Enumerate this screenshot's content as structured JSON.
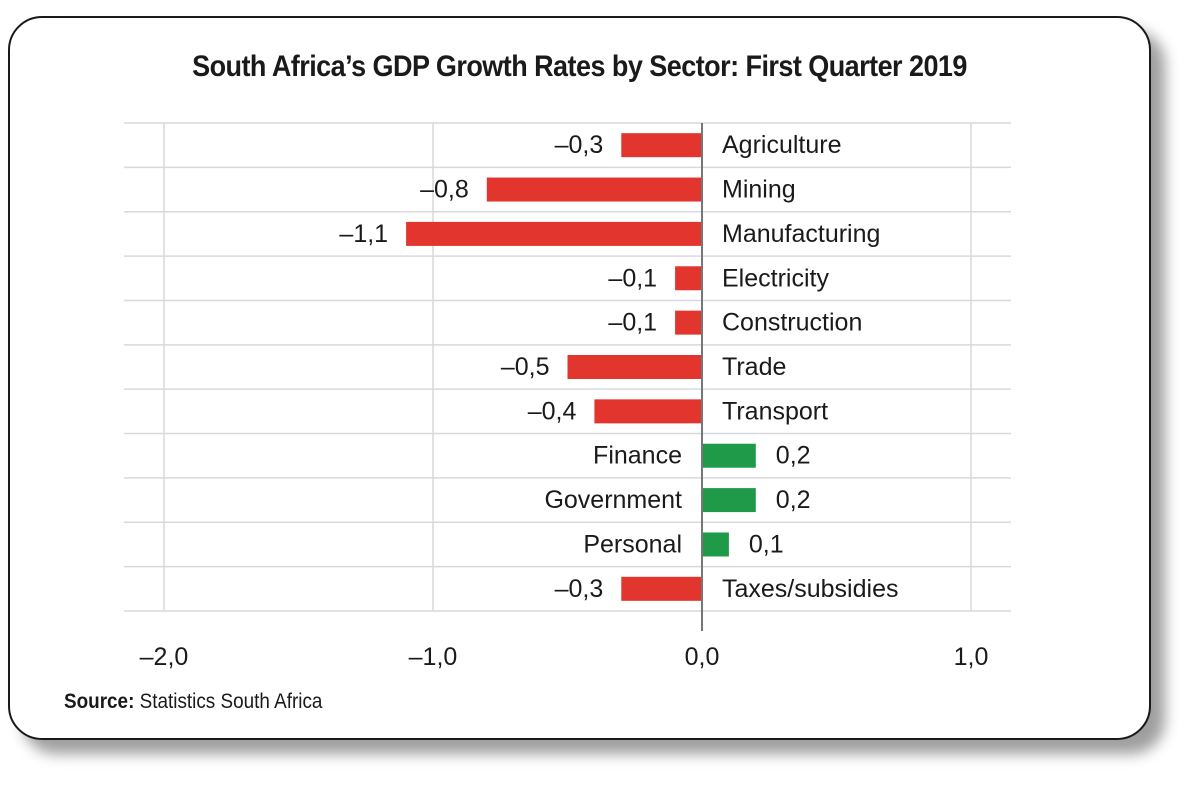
{
  "title": "South Africa’s GDP Growth Rates by Sector: First Quarter 2019",
  "source": {
    "label": "Source:",
    "text": "Statistics South Africa"
  },
  "colors": {
    "negative": "#e2352d",
    "positive": "#1f9a48",
    "grid": "#d9d9d9",
    "axis": "#777777",
    "text": "#1a1a1a"
  },
  "chart_data": {
    "type": "bar",
    "orientation": "horizontal",
    "title": "South Africa’s GDP Growth Rates by Sector: First Quarter 2019",
    "xlabel": "",
    "ylabel": "",
    "categories": [
      "Agriculture",
      "Mining",
      "Manufacturing",
      "Electricity",
      "Construction",
      "Trade",
      "Transport",
      "Finance",
      "Government",
      "Personal",
      "Taxes/subsidies"
    ],
    "values": [
      -0.3,
      -0.8,
      -1.1,
      -0.1,
      -0.1,
      -0.5,
      -0.4,
      0.2,
      0.2,
      0.1,
      -0.3
    ],
    "value_labels": [
      "–0,3",
      "–0,8",
      "–1,1",
      "–0,1",
      "–0,1",
      "–0,5",
      "–0,4",
      "0,2",
      "0,2",
      "0,1",
      "–0,3"
    ],
    "xlim": [
      -2.1,
      1.15
    ],
    "x_ticks": [
      -2.0,
      -1.0,
      0.0,
      1.0
    ],
    "x_tick_labels": [
      "–2,0",
      "–1,0",
      "0,0",
      "1,0"
    ],
    "grid": true,
    "legend": "none"
  }
}
